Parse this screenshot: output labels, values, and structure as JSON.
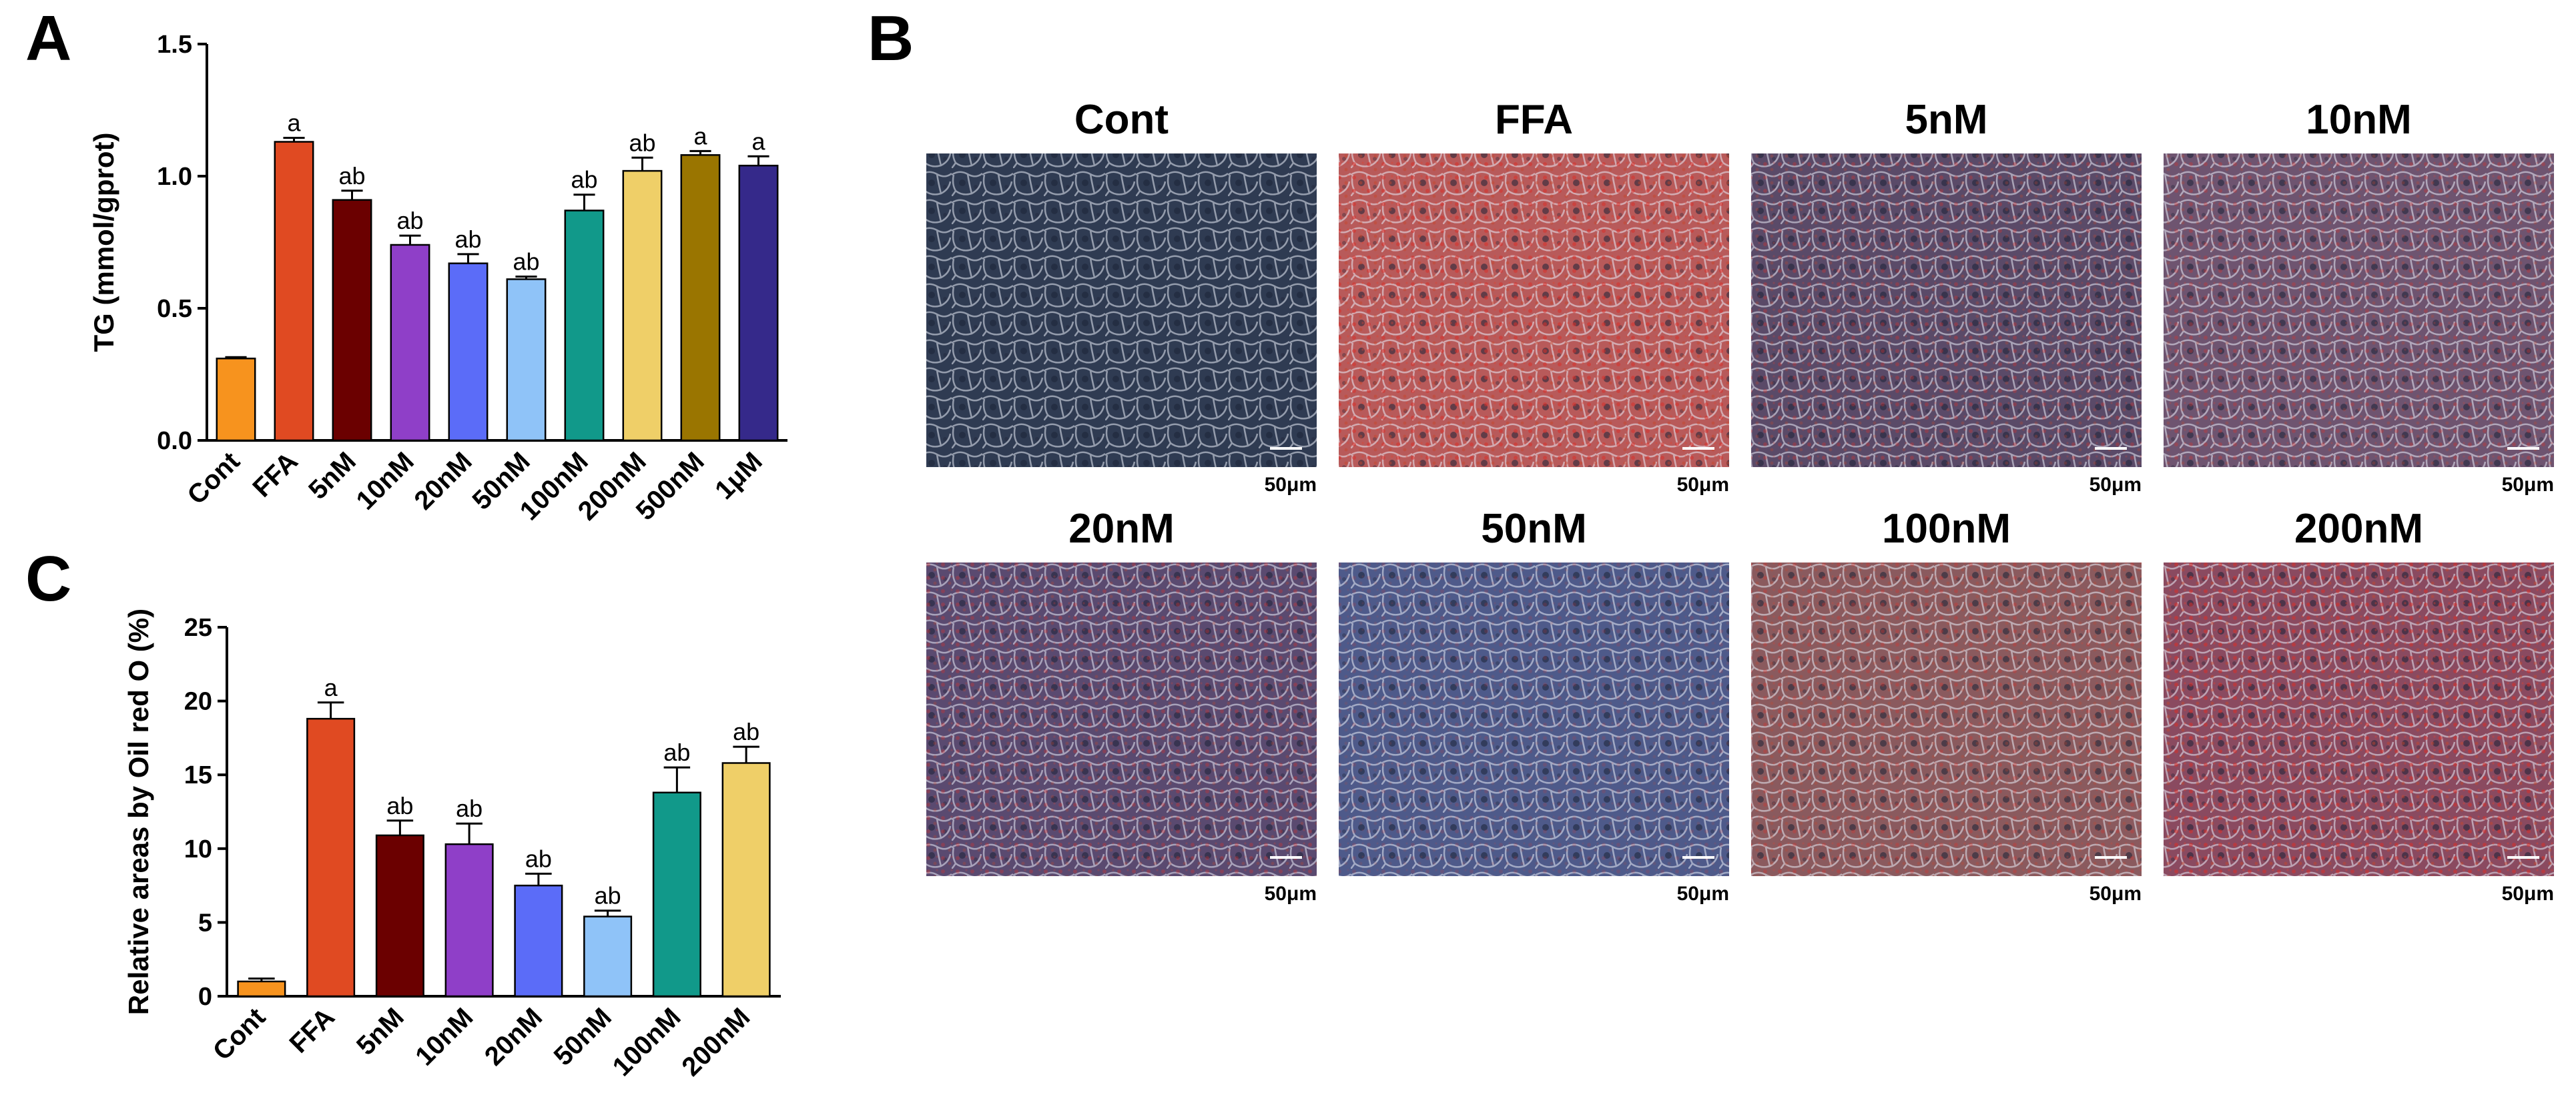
{
  "panel_labels": {
    "a": "A",
    "b": "B",
    "c": "C"
  },
  "scale_bar_text": "50μm",
  "chart_data": [
    {
      "panel": "A",
      "type": "bar",
      "ylabel": "TG (mmol/gprot)",
      "xlabel": "",
      "ylim": [
        0,
        1.5
      ],
      "yticks": [
        0,
        0.5,
        1.0,
        1.5
      ],
      "ytick_labels": [
        "0.0",
        "0.5",
        "1.0",
        "1.5"
      ],
      "categories": [
        "Cont",
        "FFA",
        "5nM",
        "10nM",
        "20nM",
        "50nM",
        "100nM",
        "200nM",
        "500nM",
        "1μM"
      ],
      "values": [
        0.31,
        1.13,
        0.91,
        0.74,
        0.67,
        0.61,
        0.87,
        1.02,
        1.08,
        1.04
      ],
      "errors": [
        0.005,
        0.015,
        0.035,
        0.035,
        0.035,
        0.01,
        0.06,
        0.05,
        0.015,
        0.035
      ],
      "significance": [
        "",
        "a",
        "ab",
        "ab",
        "ab",
        "ab",
        "ab",
        "ab",
        "a",
        "a"
      ],
      "colors": [
        "#F7931E",
        "#E04A22",
        "#6B0000",
        "#8F3FC8",
        "#5B6CF8",
        "#8FC3F8",
        "#11998A",
        "#EFCF68",
        "#9A7500",
        "#35298A"
      ],
      "grid": false
    },
    {
      "panel": "C",
      "type": "bar",
      "ylabel": "Relative areas by Oil red O (%)",
      "xlabel": "",
      "ylim": [
        0,
        25
      ],
      "yticks": [
        0,
        5,
        10,
        15,
        20,
        25
      ],
      "ytick_labels": [
        "0",
        "5",
        "10",
        "15",
        "20",
        "25"
      ],
      "categories": [
        "Cont",
        "FFA",
        "5nM",
        "10nM",
        "20nM",
        "50nM",
        "100nM",
        "200nM"
      ],
      "values": [
        1.0,
        18.8,
        10.9,
        10.3,
        7.5,
        5.4,
        13.8,
        15.8
      ],
      "errors": [
        0.2,
        1.1,
        1.0,
        1.4,
        0.8,
        0.4,
        1.7,
        1.1
      ],
      "significance": [
        "",
        "a",
        "ab",
        "ab",
        "ab",
        "ab",
        "ab",
        "ab"
      ],
      "colors": [
        "#F7931E",
        "#E04A22",
        "#6B0000",
        "#8F3FC8",
        "#5B6CF8",
        "#8FC3F8",
        "#11998A",
        "#EFCF68"
      ],
      "grid": false
    }
  ],
  "micrographs": [
    {
      "title": "Cont",
      "tone": "#2f3b52",
      "stain": "none"
    },
    {
      "title": "FFA",
      "tone": "#b85a5a",
      "stain": "heavy"
    },
    {
      "title": "5nM",
      "tone": "#5a4a68",
      "stain": "medium"
    },
    {
      "title": "10nM",
      "tone": "#6e5470",
      "stain": "medium"
    },
    {
      "title": "20nM",
      "tone": "#5a4a70",
      "stain": "medium"
    },
    {
      "title": "50nM",
      "tone": "#4e5a8a",
      "stain": "light"
    },
    {
      "title": "100nM",
      "tone": "#8a5a5e",
      "stain": "medium"
    },
    {
      "title": "200nM",
      "tone": "#8a4a60",
      "stain": "heavy"
    }
  ]
}
